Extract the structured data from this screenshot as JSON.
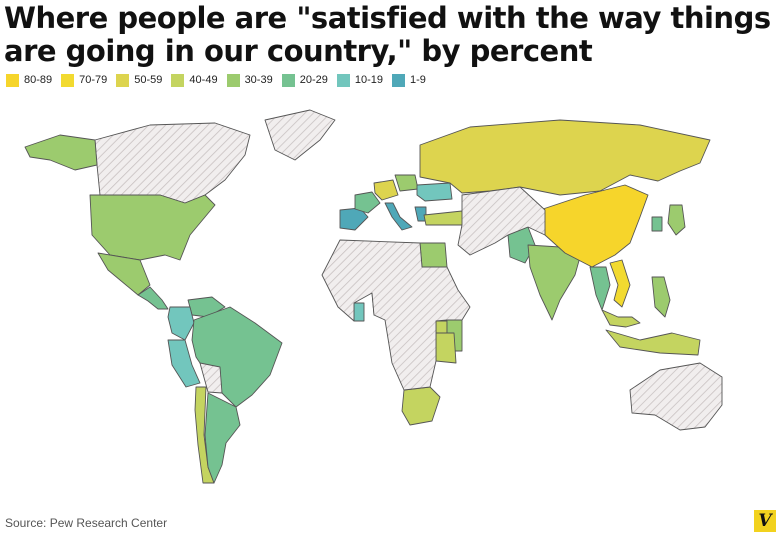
{
  "title": "Where people are \"satisfied with the way things are going in our country,\" by percent",
  "legend": [
    {
      "label": "80-89",
      "color": "#f6d52b"
    },
    {
      "label": "70-79",
      "color": "#f2da30"
    },
    {
      "label": "50-59",
      "color": "#ddd44e"
    },
    {
      "label": "40-49",
      "color": "#c4d460"
    },
    {
      "label": "30-39",
      "color": "#9ccb6e"
    },
    {
      "label": "20-29",
      "color": "#75c291"
    },
    {
      "label": "10-19",
      "color": "#72c6bd"
    },
    {
      "label": "1-9",
      "color": "#4fa8b8"
    }
  ],
  "no_data_fill": "hatched-grey",
  "regions": [
    {
      "name": "Canada",
      "bin": "no-data"
    },
    {
      "name": "Greenland",
      "bin": "no-data"
    },
    {
      "name": "Alaska",
      "bin": "30-39"
    },
    {
      "name": "United States",
      "bin": "30-39"
    },
    {
      "name": "Mexico",
      "bin": "30-39"
    },
    {
      "name": "Central America",
      "bin": "20-29"
    },
    {
      "name": "Venezuela",
      "bin": "20-29"
    },
    {
      "name": "Colombia",
      "bin": "10-19"
    },
    {
      "name": "Peru",
      "bin": "10-19"
    },
    {
      "name": "Brazil",
      "bin": "20-29"
    },
    {
      "name": "Bolivia",
      "bin": "no-data"
    },
    {
      "name": "Chile",
      "bin": "40-49"
    },
    {
      "name": "Argentina",
      "bin": "20-29"
    },
    {
      "name": "Spain",
      "bin": "1-9"
    },
    {
      "name": "France",
      "bin": "20-29"
    },
    {
      "name": "Germany",
      "bin": "50-59"
    },
    {
      "name": "Italy",
      "bin": "1-9"
    },
    {
      "name": "Poland",
      "bin": "30-39"
    },
    {
      "name": "Ukraine",
      "bin": "10-19"
    },
    {
      "name": "Greece",
      "bin": "1-9"
    },
    {
      "name": "Turkey",
      "bin": "40-49"
    },
    {
      "name": "Russia",
      "bin": "50-59"
    },
    {
      "name": "Egypt",
      "bin": "30-39"
    },
    {
      "name": "Nigeria",
      "bin": "10-19"
    },
    {
      "name": "Ghana",
      "bin": "10-19"
    },
    {
      "name": "Uganda",
      "bin": "40-49"
    },
    {
      "name": "Kenya",
      "bin": "30-39"
    },
    {
      "name": "Tanzania",
      "bin": "40-49"
    },
    {
      "name": "South Africa",
      "bin": "40-49"
    },
    {
      "name": "Africa (other)",
      "bin": "no-data"
    },
    {
      "name": "Pakistan",
      "bin": "20-29"
    },
    {
      "name": "India",
      "bin": "30-39"
    },
    {
      "name": "China",
      "bin": "80-89"
    },
    {
      "name": "Vietnam",
      "bin": "70-79"
    },
    {
      "name": "Thailand",
      "bin": "20-29"
    },
    {
      "name": "Malaysia",
      "bin": "40-49"
    },
    {
      "name": "Philippines",
      "bin": "30-39"
    },
    {
      "name": "Indonesia",
      "bin": "40-49"
    },
    {
      "name": "Japan",
      "bin": "30-39"
    },
    {
      "name": "Korea",
      "bin": "20-29"
    },
    {
      "name": "Australia",
      "bin": "no-data"
    },
    {
      "name": "Middle East / Central Asia",
      "bin": "no-data"
    }
  ],
  "source": "Source: Pew Research Center",
  "logo_text": "V"
}
